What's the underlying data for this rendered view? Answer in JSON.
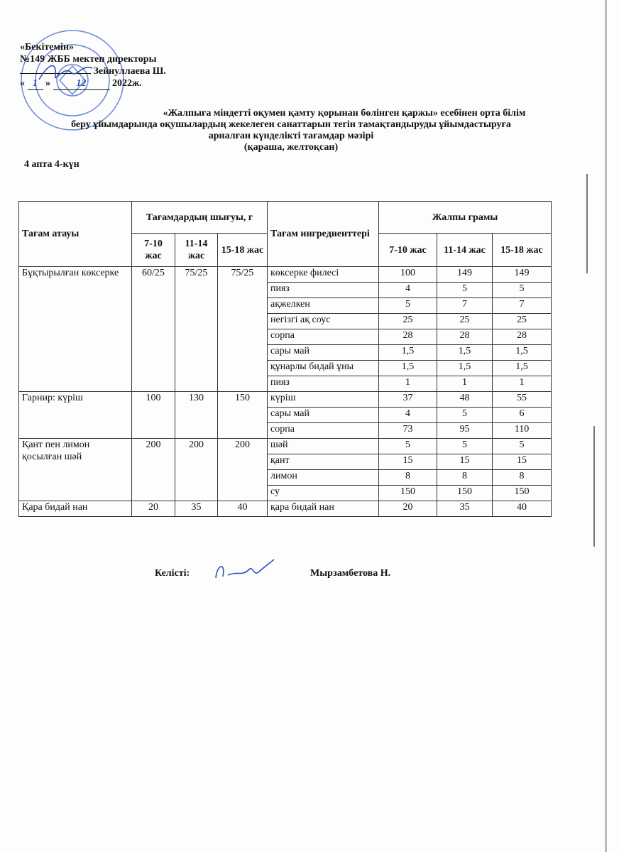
{
  "approval": {
    "line1": "«Бекітемін»",
    "line2": "№149 ЖББ мектеп директоры",
    "line3": "Зейнуллаева Ш.",
    "line4_day": "1",
    "line4_month": "12",
    "line4_year": "2022ж.",
    "stamp_text": "ҚАЗАҚСТАН РЕСПУБЛИКАСЫ БІЛІМ БАСҚАРМАСЫ №149 ЖАЛПЫ БІЛІМ БЕРЕТІН МЕКТЕБІ"
  },
  "title": {
    "line1": "«Жалпыға міндетті оқумен қамту қорынан бөлінген қаржы» есебінен орта білім",
    "line2": "беру ұйымдарында оқушылардың жекелеген санаттарын тегін тамақтандыруды ұйымдастыруға",
    "line3": "арналған күнделікті тағамдар мәзірі",
    "line4": "(қараша, желтоқсан)"
  },
  "week": "4 апта 4-күн",
  "table": {
    "headers": {
      "dish": "Тағам атауы",
      "output": "Тағамдардың шығуы, г",
      "ingredients": "Тағам ингредиенттері",
      "total": "Жалпы грамы",
      "age1": "7-10 жас",
      "age2": "11-14 жас",
      "age3": "15-18 жас",
      "age1_total": "7-10 жас",
      "age2_total": "11-14 жас",
      "age3_total": "15-18 жас"
    },
    "dishes": [
      {
        "name": "Бұқтырылған көксерке",
        "out": [
          "60/25",
          "75/25",
          "75/25"
        ],
        "items": [
          {
            "name": "көксерке филесі",
            "v": [
              "100",
              "149",
              "149"
            ]
          },
          {
            "name": "пияз",
            "v": [
              "4",
              "5",
              "5"
            ]
          },
          {
            "name": "ақжелкен",
            "v": [
              "5",
              "7",
              "7"
            ]
          },
          {
            "name": "негізгі ақ соус",
            "v": [
              "25",
              "25",
              "25"
            ]
          },
          {
            "name": "сорпа",
            "v": [
              "28",
              "28",
              "28"
            ]
          },
          {
            "name": "сары май",
            "v": [
              "1,5",
              "1,5",
              "1,5"
            ]
          },
          {
            "name": "құнарлы бидай ұны",
            "v": [
              "1,5",
              "1,5",
              "1,5"
            ]
          },
          {
            "name": "пияз",
            "v": [
              "1",
              "1",
              "1"
            ]
          }
        ]
      },
      {
        "name": "Гарнир: күріш",
        "out": [
          "100",
          "130",
          "150"
        ],
        "items": [
          {
            "name": "күріш",
            "v": [
              "37",
              "48",
              "55"
            ]
          },
          {
            "name": "сары май",
            "v": [
              "4",
              "5",
              "6"
            ]
          },
          {
            "name": "сорпа",
            "v": [
              "73",
              "95",
              "110"
            ]
          }
        ]
      },
      {
        "name": "Қант пен лимон қосылған шәй",
        "out": [
          "200",
          "200",
          "200"
        ],
        "items": [
          {
            "name": "шәй",
            "v": [
              "5",
              "5",
              "5"
            ]
          },
          {
            "name": "қант",
            "v": [
              "15",
              "15",
              "15"
            ]
          },
          {
            "name": "лимон",
            "v": [
              "8",
              "8",
              "8"
            ]
          },
          {
            "name": "су",
            "v": [
              "150",
              "150",
              "150"
            ]
          }
        ]
      },
      {
        "name": "Қара бидай нан",
        "out": [
          "20",
          "35",
          "40"
        ],
        "items": [
          {
            "name": "қара бидай нан",
            "v": [
              "20",
              "35",
              "40"
            ]
          }
        ]
      }
    ]
  },
  "footer": {
    "agreed_label": "Келісті:",
    "agreed_name": "Мырзамбетова Н."
  },
  "colors": {
    "stamp": "#3a5fc8",
    "signature": "#2b4fb8"
  }
}
